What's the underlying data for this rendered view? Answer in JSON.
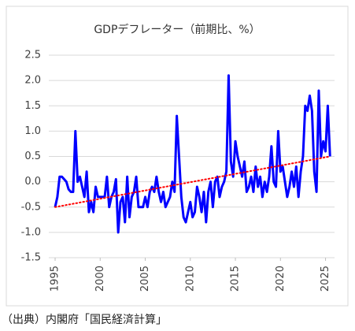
{
  "chart_data": {
    "type": "line",
    "title": "GDPデフレーター（前期比、%）",
    "note": "（出典）内閣府「国民経済計算」",
    "x": [
      1995,
      1995.25,
      1995.5,
      1995.75,
      1996,
      1996.25,
      1996.5,
      1996.75,
      1997,
      1997.25,
      1997.5,
      1997.75,
      1998,
      1998.25,
      1998.5,
      1998.75,
      1999,
      1999.25,
      1999.5,
      1999.75,
      2000,
      2000.25,
      2000.5,
      2000.75,
      2001,
      2001.25,
      2001.5,
      2001.75,
      2002,
      2002.25,
      2002.5,
      2002.75,
      2003,
      2003.25,
      2003.5,
      2003.75,
      2004,
      2004.25,
      2004.5,
      2004.75,
      2005,
      2005.25,
      2005.5,
      2005.75,
      2006,
      2006.25,
      2006.5,
      2006.75,
      2007,
      2007.25,
      2007.5,
      2007.75,
      2008,
      2008.25,
      2008.5,
      2008.75,
      2009,
      2009.25,
      2009.5,
      2009.75,
      2010,
      2010.25,
      2010.5,
      2010.75,
      2011,
      2011.25,
      2011.5,
      2011.75,
      2012,
      2012.25,
      2012.5,
      2012.75,
      2013,
      2013.25,
      2013.5,
      2013.75,
      2014,
      2014.25,
      2014.5,
      2014.75,
      2015,
      2015.25,
      2015.5,
      2015.75,
      2016,
      2016.25,
      2016.5,
      2016.75,
      2017,
      2017.25,
      2017.5,
      2017.75,
      2018,
      2018.25,
      2018.5,
      2018.75,
      2019,
      2019.25,
      2019.5,
      2019.75,
      2020,
      2020.25,
      2020.5,
      2020.75,
      2021,
      2021.25,
      2021.5,
      2021.75,
      2022,
      2022.25,
      2022.5,
      2022.75,
      2023,
      2023.25,
      2023.5,
      2023.75,
      2024,
      2024.25,
      2024.5,
      2024.75,
      2025,
      2025.25,
      2025.5
    ],
    "series": [
      {
        "color": "#0000ff",
        "values": [
          -0.5,
          -0.3,
          0.1,
          0.1,
          0.05,
          0.0,
          -0.15,
          -0.2,
          -0.2,
          1.0,
          0.0,
          0.1,
          -0.1,
          -0.3,
          0.2,
          -0.6,
          -0.4,
          -0.6,
          -0.1,
          -0.3,
          -0.3,
          -0.3,
          -0.3,
          0.1,
          -0.5,
          -0.3,
          -0.2,
          0.05,
          -1.0,
          -0.4,
          -0.3,
          -0.8,
          0.1,
          -0.7,
          -0.3,
          -0.2,
          0.1,
          -0.5,
          -0.5,
          -0.5,
          -0.3,
          -0.5,
          -0.2,
          -0.1,
          -0.2,
          0.1,
          -0.2,
          -0.4,
          -0.2,
          -0.5,
          -0.4,
          -0.3,
          0.0,
          -0.2,
          1.3,
          0.5,
          -0.3,
          -0.7,
          -0.8,
          -0.6,
          -0.4,
          -0.7,
          -0.6,
          -0.1,
          -0.3,
          -0.6,
          -0.2,
          -0.8,
          -0.2,
          0.0,
          -0.5,
          0.0,
          0.1,
          -0.3,
          -0.1,
          0.0,
          0.2,
          2.1,
          0.4,
          0.1,
          0.8,
          0.5,
          0.3,
          0.1,
          0.4,
          -0.2,
          -0.1,
          0.1,
          -0.2,
          0.3,
          -0.1,
          0.1,
          -0.3,
          0.0,
          -0.2,
          0.1,
          0.7,
          0.0,
          -0.1,
          1.0,
          0.2,
          0.3,
          0.0,
          -0.3,
          -0.1,
          0.2,
          -0.1,
          0.3,
          -0.3,
          0.2,
          0.5,
          1.5,
          1.4,
          1.7,
          1.4,
          0.2,
          -0.2,
          1.8,
          0.5,
          0.8,
          0.6,
          1.5,
          0.5
        ]
      },
      {
        "color": "#ff0000",
        "dashed": true,
        "x": [
          1995,
          2025.5
        ],
        "values": [
          -0.5,
          0.5
        ]
      }
    ],
    "xlim": [
      1994.3,
      2026
    ],
    "xticks": [
      1995,
      2000,
      2005,
      2010,
      2015,
      2020,
      2025
    ],
    "ylim": [
      -1.5,
      2.5
    ],
    "yticks": [
      -1.5,
      {
        "value": -1,
        "label": "-1.0"
      },
      -0.5,
      {
        "value": 0,
        "label": "0.0"
      },
      0.5,
      {
        "value": 1,
        "label": "1.0"
      },
      1.5,
      {
        "value": 2,
        "label": "2.0"
      },
      2.5
    ],
    "grid": true
  }
}
